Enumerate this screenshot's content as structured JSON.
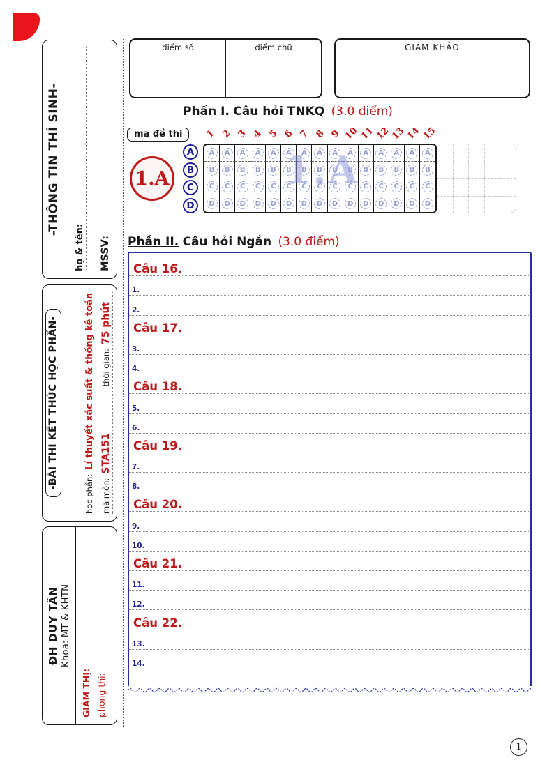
{
  "colors": {
    "brand_red": "#e9151b",
    "accent_red": "#c01818",
    "navy": "#1c1c96",
    "bubble": "#9aa0d2",
    "answer_box_border": "#2c2ca0"
  },
  "sidebar": {
    "student_info": {
      "title": "-THÔNG TIN THÍ SINH-",
      "name_label": "họ & tên:",
      "id_label": "MSSV:"
    },
    "exam_info": {
      "title": "-BÀI THI KẾT THÚC HỌC PHẦN-",
      "course_label": "học phần:",
      "course_value": "Lí thuyết xác suất & thống kê toán",
      "code_label": "mã môn:",
      "code_value": "STA151",
      "duration_label": "thời gian:",
      "duration_value": "75 phút"
    },
    "university": {
      "name": "ĐH DUY TÂN",
      "faculty": "Khoa: MT & KHTN",
      "proctor_label": "GIÁM THỊ:",
      "room_label": "phòng thi:"
    }
  },
  "grading": {
    "score_number_label": "điểm số",
    "score_text_label": "điểm chữ",
    "examiner_label": "GIÁM KHẢO"
  },
  "part1": {
    "heading_prefix": "Phần I.",
    "heading_text": "Câu hỏi TNKQ",
    "heading_points": "(3.0 điểm)",
    "exam_code_label": "mã đề thi",
    "exam_code_value": "1.A",
    "watermark": "1.A",
    "question_numbers": [
      "1",
      "2",
      "3",
      "4",
      "5",
      "6",
      "7",
      "8",
      "9",
      "10",
      "11",
      "12",
      "13",
      "14",
      "15"
    ],
    "options": [
      "A",
      "B",
      "C",
      "D"
    ],
    "extra_columns": 5
  },
  "part2": {
    "heading_prefix": "Phần II.",
    "heading_text": "Câu hỏi Ngắn",
    "heading_points": "(3.0 điểm)",
    "lines": [
      {
        "type": "question",
        "label": "Câu 16."
      },
      {
        "type": "numbered",
        "label": "1."
      },
      {
        "type": "numbered",
        "label": "2."
      },
      {
        "type": "question",
        "label": "Câu 17."
      },
      {
        "type": "numbered",
        "label": "3."
      },
      {
        "type": "numbered",
        "label": "4."
      },
      {
        "type": "question",
        "label": "Câu 18."
      },
      {
        "type": "numbered",
        "label": "5."
      },
      {
        "type": "numbered",
        "label": "6."
      },
      {
        "type": "question",
        "label": "Câu 19."
      },
      {
        "type": "numbered",
        "label": "7."
      },
      {
        "type": "numbered",
        "label": "8."
      },
      {
        "type": "question",
        "label": "Câu 20."
      },
      {
        "type": "numbered",
        "label": "9."
      },
      {
        "type": "numbered",
        "label": "10."
      },
      {
        "type": "question",
        "label": "Câu 21."
      },
      {
        "type": "numbered",
        "label": "11."
      },
      {
        "type": "numbered",
        "label": "12."
      },
      {
        "type": "question",
        "label": "Câu 22."
      },
      {
        "type": "numbered",
        "label": "13."
      },
      {
        "type": "numbered",
        "label": "14."
      }
    ]
  },
  "page": {
    "number": "1"
  }
}
